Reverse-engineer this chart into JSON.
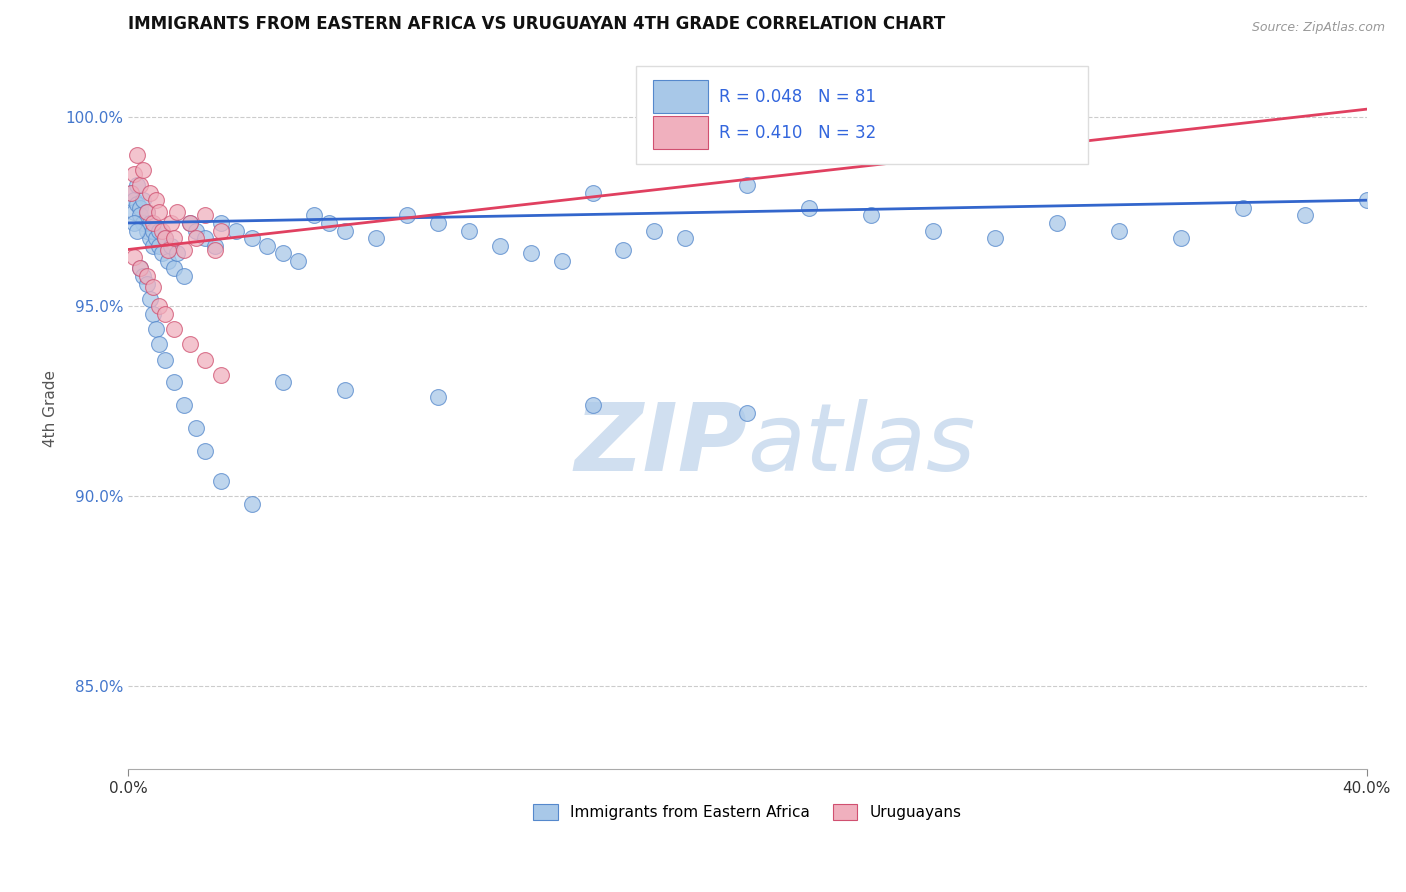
{
  "title": "IMMIGRANTS FROM EASTERN AFRICA VS URUGUAYAN 4TH GRADE CORRELATION CHART",
  "source": "Source: ZipAtlas.com",
  "ylabel": "4th Grade",
  "yticks_labels": [
    "85.0%",
    "90.0%",
    "95.0%",
    "100.0%"
  ],
  "ytick_vals": [
    0.85,
    0.9,
    0.95,
    1.0
  ],
  "xlim": [
    0.0,
    0.4
  ],
  "ylim": [
    0.828,
    1.018
  ],
  "xlabel_ticks": [
    0.0,
    0.4
  ],
  "xlabel_labels": [
    "0.0%",
    "40.0%"
  ],
  "legend_label_blue": "Immigrants from Eastern Africa",
  "legend_label_pink": "Uruguayans",
  "R_blue": 0.048,
  "N_blue": 81,
  "R_pink": 0.41,
  "N_pink": 32,
  "blue_scatter_color": "#A8C8E8",
  "blue_edge_color": "#5588CC",
  "pink_scatter_color": "#F0B0BE",
  "pink_edge_color": "#D05070",
  "blue_line_color": "#3366CC",
  "pink_line_color": "#E04060",
  "title_color": "#111111",
  "R_text_color": "#3366DD",
  "watermark_color": "#D0DFF0",
  "grid_color": "#CCCCCC",
  "ytick_color": "#4477CC",
  "blue_scatter_x": [
    0.001,
    0.002,
    0.002,
    0.003,
    0.003,
    0.004,
    0.004,
    0.005,
    0.005,
    0.006,
    0.006,
    0.007,
    0.007,
    0.008,
    0.008,
    0.009,
    0.01,
    0.01,
    0.011,
    0.012,
    0.013,
    0.014,
    0.015,
    0.016,
    0.018,
    0.02,
    0.022,
    0.025,
    0.028,
    0.03,
    0.035,
    0.04,
    0.045,
    0.05,
    0.055,
    0.06,
    0.065,
    0.07,
    0.08,
    0.09,
    0.1,
    0.11,
    0.12,
    0.13,
    0.14,
    0.15,
    0.16,
    0.17,
    0.18,
    0.2,
    0.22,
    0.24,
    0.26,
    0.28,
    0.3,
    0.32,
    0.34,
    0.36,
    0.38,
    0.4,
    0.002,
    0.003,
    0.004,
    0.005,
    0.006,
    0.007,
    0.008,
    0.009,
    0.01,
    0.012,
    0.015,
    0.018,
    0.022,
    0.025,
    0.03,
    0.04,
    0.05,
    0.07,
    0.1,
    0.15,
    0.2
  ],
  "blue_scatter_y": [
    0.98,
    0.978,
    0.975,
    0.982,
    0.977,
    0.976,
    0.974,
    0.972,
    0.978,
    0.97,
    0.975,
    0.968,
    0.972,
    0.966,
    0.97,
    0.968,
    0.966,
    0.97,
    0.964,
    0.968,
    0.962,
    0.966,
    0.96,
    0.964,
    0.958,
    0.972,
    0.97,
    0.968,
    0.966,
    0.972,
    0.97,
    0.968,
    0.966,
    0.964,
    0.962,
    0.974,
    0.972,
    0.97,
    0.968,
    0.974,
    0.972,
    0.97,
    0.966,
    0.964,
    0.962,
    0.98,
    0.965,
    0.97,
    0.968,
    0.982,
    0.976,
    0.974,
    0.97,
    0.968,
    0.972,
    0.97,
    0.968,
    0.976,
    0.974,
    0.978,
    0.972,
    0.97,
    0.96,
    0.958,
    0.956,
    0.952,
    0.948,
    0.944,
    0.94,
    0.936,
    0.93,
    0.924,
    0.918,
    0.912,
    0.904,
    0.898,
    0.93,
    0.928,
    0.926,
    0.924,
    0.922
  ],
  "pink_scatter_x": [
    0.001,
    0.002,
    0.003,
    0.004,
    0.005,
    0.006,
    0.007,
    0.008,
    0.009,
    0.01,
    0.011,
    0.012,
    0.013,
    0.014,
    0.015,
    0.016,
    0.018,
    0.02,
    0.022,
    0.025,
    0.028,
    0.03,
    0.002,
    0.004,
    0.006,
    0.008,
    0.01,
    0.012,
    0.015,
    0.02,
    0.025,
    0.03
  ],
  "pink_scatter_y": [
    0.98,
    0.985,
    0.99,
    0.982,
    0.986,
    0.975,
    0.98,
    0.972,
    0.978,
    0.975,
    0.97,
    0.968,
    0.965,
    0.972,
    0.968,
    0.975,
    0.965,
    0.972,
    0.968,
    0.974,
    0.965,
    0.97,
    0.963,
    0.96,
    0.958,
    0.955,
    0.95,
    0.948,
    0.944,
    0.94,
    0.936,
    0.932
  ],
  "blue_line_x0": 0.0,
  "blue_line_y0": 0.972,
  "blue_line_x1": 0.4,
  "blue_line_y1": 0.978,
  "pink_line_x0": 0.0,
  "pink_line_y0": 0.965,
  "pink_line_x1": 0.4,
  "pink_line_y1": 1.002
}
